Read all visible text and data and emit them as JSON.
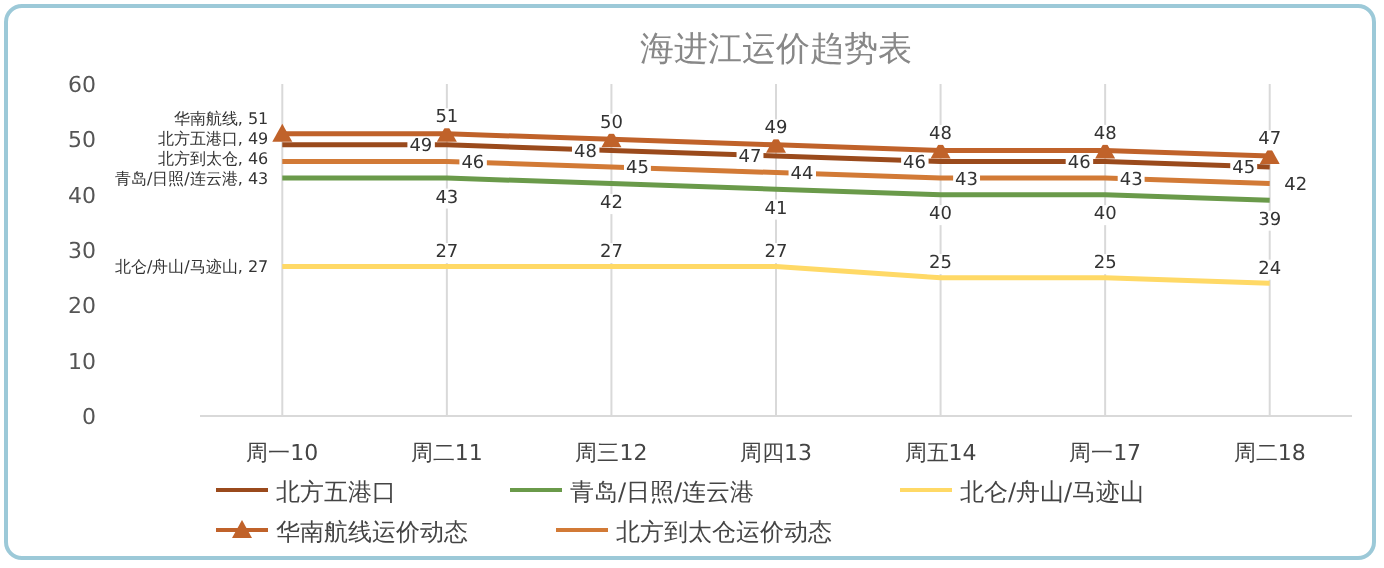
{
  "chart_data": {
    "type": "line",
    "title": "海进江运价趋势表",
    "categories": [
      "周一10",
      "周二11",
      "周三12",
      "周四13",
      "周五14",
      "周一17",
      "周二18"
    ],
    "ylim": [
      0,
      60
    ],
    "yticks": [
      0,
      10,
      20,
      30,
      40,
      50,
      60
    ],
    "grid": "x",
    "legend": "bottom",
    "series": [
      {
        "name": "北方五港口",
        "color": "#9a4a1c",
        "values": [
          49,
          49,
          48,
          47,
          46,
          46,
          45
        ],
        "value_labels": [
          "北方五港口, 49",
          "49",
          "48",
          "47",
          "46",
          "46",
          "45"
        ]
      },
      {
        "name": "青岛/日照/连云港",
        "color": "#6a9a4a",
        "values": [
          43,
          43,
          42,
          41,
          40,
          40,
          39
        ],
        "value_labels": [
          "青岛/日照/连云港, 43",
          "43",
          "42",
          "41",
          "40",
          "40",
          "39"
        ]
      },
      {
        "name": "北仑/舟山/马迹山",
        "color": "#ffd966",
        "values": [
          27,
          27,
          27,
          27,
          25,
          25,
          24
        ],
        "value_labels": [
          "北仑/舟山/马迹山, 27",
          "27",
          "27",
          "27",
          "25",
          "25",
          "24"
        ]
      },
      {
        "name": "华南航线运价动态",
        "color": "#c0622a",
        "marker": "triangle",
        "values": [
          51,
          51,
          50,
          49,
          48,
          48,
          47
        ],
        "value_labels": [
          "华南航线, 51",
          "51",
          "50",
          "49",
          "48",
          "48",
          "47"
        ]
      },
      {
        "name": "北方到太仓运价动态",
        "color": "#d27a36",
        "values": [
          46,
          46,
          45,
          44,
          43,
          43,
          42
        ],
        "value_labels": [
          "北方到太仓, 46",
          "46",
          "45",
          "44",
          "43",
          "43",
          "42"
        ]
      }
    ]
  }
}
